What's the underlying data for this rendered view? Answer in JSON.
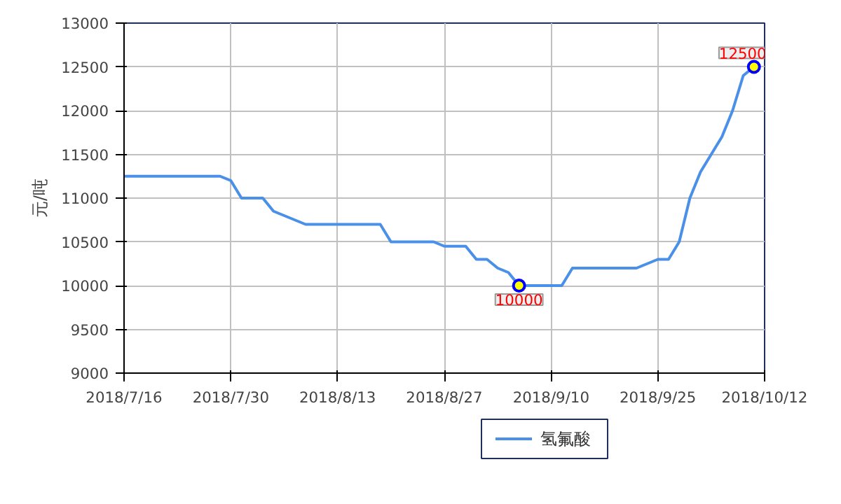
{
  "chart_data": {
    "type": "line",
    "ylabel": "元/吨",
    "categories": [
      "2018/7/16",
      null,
      null,
      null,
      null,
      null,
      null,
      null,
      null,
      null,
      "2018/7/30",
      null,
      null,
      null,
      null,
      null,
      null,
      null,
      null,
      null,
      "2018/8/13",
      null,
      null,
      null,
      null,
      null,
      null,
      null,
      null,
      null,
      "2018/8/27",
      null,
      null,
      null,
      null,
      null,
      null,
      null,
      null,
      null,
      "2018/9/10",
      null,
      null,
      null,
      null,
      null,
      null,
      null,
      null,
      null,
      "2018/9/25",
      null,
      null,
      null,
      null,
      null,
      null,
      null,
      null,
      null,
      "2018/10/12"
    ],
    "series": [
      {
        "name": "氢氟酸",
        "color": "#4a90e8",
        "values": [
          11250,
          11250,
          11250,
          11250,
          11250,
          11250,
          11250,
          11250,
          11250,
          11250,
          11200,
          11000,
          11000,
          11000,
          10850,
          10800,
          10750,
          10700,
          10700,
          10700,
          10700,
          10700,
          10700,
          10700,
          10700,
          10500,
          10500,
          10500,
          10500,
          10500,
          10450,
          10450,
          10450,
          10300,
          10300,
          10200,
          10150,
          10000,
          10000,
          10000,
          10000,
          10000,
          10200,
          10200,
          10200,
          10200,
          10200,
          10200,
          10200,
          10250,
          10300,
          10300,
          10500,
          11000,
          11300,
          11500,
          11700,
          12000,
          12400,
          12500,
          null
        ]
      }
    ],
    "ylim": [
      9000,
      13000
    ],
    "yticks": [
      9000,
      9500,
      10000,
      10500,
      11000,
      11500,
      12000,
      12500,
      13000
    ],
    "grid": true,
    "legend": "bottom",
    "line_style": "solid",
    "annotations": [
      {
        "text": "10000",
        "y": 10000
      },
      {
        "text": "12500",
        "y": 12500
      }
    ]
  }
}
